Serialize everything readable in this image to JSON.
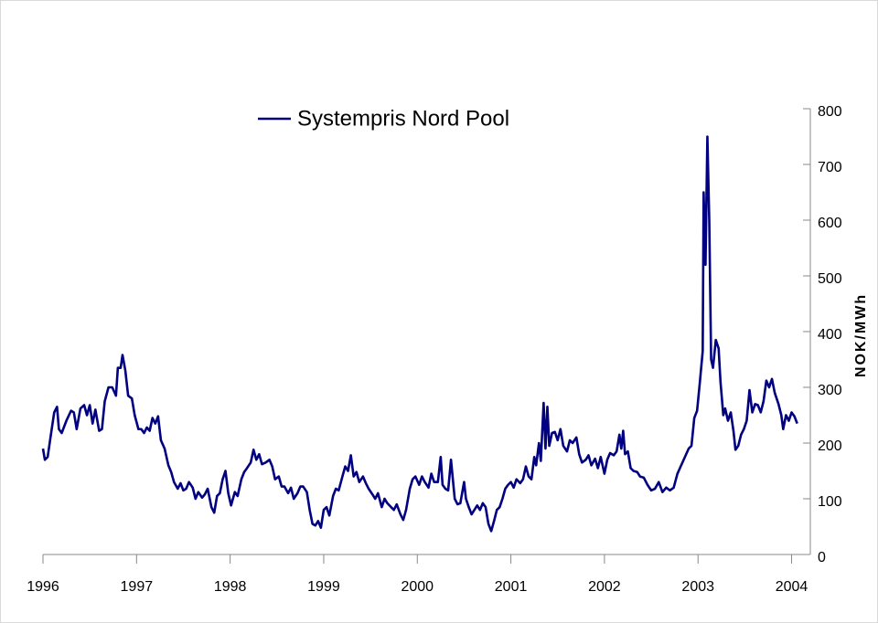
{
  "chart_data": {
    "type": "line",
    "y_label": "NOK/MWh",
    "legend": "top-left",
    "xlim": [
      1996,
      2004.2
    ],
    "xticks": [
      1996,
      1997,
      1998,
      1999,
      2000,
      2001,
      2002,
      2003,
      2004
    ],
    "ylim": [
      0,
      800
    ],
    "yticks": [
      0,
      100,
      200,
      300,
      400,
      500,
      600,
      700,
      800
    ],
    "y_axis_side": "right",
    "grid": false,
    "x": [
      1996.0,
      1996.02,
      1996.05,
      1996.08,
      1996.12,
      1996.15,
      1996.17,
      1996.2,
      1996.25,
      1996.3,
      1996.33,
      1996.36,
      1996.4,
      1996.44,
      1996.47,
      1996.5,
      1996.53,
      1996.56,
      1996.6,
      1996.63,
      1996.66,
      1996.7,
      1996.74,
      1996.78,
      1996.8,
      1996.83,
      1996.85,
      1996.88,
      1996.91,
      1996.95,
      1996.98,
      1997.02,
      1997.05,
      1997.08,
      1997.11,
      1997.14,
      1997.17,
      1997.2,
      1997.23,
      1997.26,
      1997.3,
      1997.34,
      1997.37,
      1997.4,
      1997.44,
      1997.47,
      1997.5,
      1997.53,
      1997.56,
      1997.6,
      1997.63,
      1997.66,
      1997.7,
      1997.73,
      1997.76,
      1997.8,
      1997.83,
      1997.86,
      1997.89,
      1997.92,
      1997.95,
      1997.98,
      1998.01,
      1998.05,
      1998.08,
      1998.12,
      1998.15,
      1998.18,
      1998.22,
      1998.25,
      1998.28,
      1998.31,
      1998.34,
      1998.38,
      1998.42,
      1998.45,
      1998.48,
      1998.52,
      1998.55,
      1998.58,
      1998.62,
      1998.65,
      1998.68,
      1998.72,
      1998.75,
      1998.78,
      1998.82,
      1998.85,
      1998.88,
      1998.91,
      1998.94,
      1998.97,
      1999.0,
      1999.03,
      1999.06,
      1999.1,
      1999.13,
      1999.16,
      1999.2,
      1999.23,
      1999.26,
      1999.29,
      1999.32,
      1999.35,
      1999.38,
      1999.42,
      1999.45,
      1999.48,
      1999.52,
      1999.55,
      1999.58,
      1999.62,
      1999.65,
      1999.68,
      1999.72,
      1999.75,
      1999.78,
      1999.82,
      1999.85,
      1999.88,
      1999.92,
      1999.95,
      1999.98,
      2000.02,
      2000.05,
      2000.08,
      2000.12,
      2000.15,
      2000.18,
      2000.22,
      2000.25,
      2000.27,
      2000.3,
      2000.33,
      2000.36,
      2000.4,
      2000.43,
      2000.46,
      2000.5,
      2000.52,
      2000.55,
      2000.58,
      2000.61,
      2000.64,
      2000.67,
      2000.7,
      2000.73,
      2000.76,
      2000.79,
      2000.82,
      2000.85,
      2000.88,
      2000.91,
      2000.94,
      2000.97,
      2001.0,
      2001.03,
      2001.06,
      2001.1,
      2001.13,
      2001.16,
      2001.19,
      2001.22,
      2001.25,
      2001.27,
      2001.3,
      2001.32,
      2001.35,
      2001.37,
      2001.39,
      2001.41,
      2001.44,
      2001.47,
      2001.5,
      2001.53,
      2001.56,
      2001.6,
      2001.63,
      2001.66,
      2001.7,
      2001.73,
      2001.76,
      2001.8,
      2001.83,
      2001.86,
      2001.9,
      2001.93,
      2001.96,
      2002.0,
      2002.03,
      2002.06,
      2002.1,
      2002.13,
      2002.16,
      2002.18,
      2002.2,
      2002.22,
      2002.25,
      2002.28,
      2002.31,
      2002.35,
      2002.38,
      2002.42,
      2002.46,
      2002.5,
      2002.54,
      2002.58,
      2002.62,
      2002.66,
      2002.7,
      2002.74,
      2002.78,
      2002.82,
      2002.86,
      2002.9,
      2002.93,
      2002.96,
      2002.99,
      2003.02,
      2003.05,
      2003.06,
      2003.08,
      2003.1,
      2003.12,
      2003.14,
      2003.16,
      2003.19,
      2003.22,
      2003.24,
      2003.27,
      2003.29,
      2003.32,
      2003.35,
      2003.38,
      2003.4,
      2003.43,
      2003.46,
      2003.49,
      2003.52,
      2003.55,
      2003.58,
      2003.61,
      2003.64,
      2003.67,
      2003.7,
      2003.73,
      2003.76,
      2003.79,
      2003.82,
      2003.86,
      2003.89,
      2003.91,
      2003.94,
      2003.97,
      2004.0,
      2004.03,
      2004.06
    ],
    "series": [
      {
        "name": "Systempris Nord Pool",
        "color": "#000080",
        "values": [
          190,
          170,
          175,
          210,
          255,
          265,
          225,
          218,
          240,
          258,
          255,
          225,
          262,
          268,
          250,
          268,
          235,
          260,
          222,
          225,
          275,
          300,
          300,
          285,
          335,
          335,
          358,
          330,
          285,
          280,
          250,
          225,
          225,
          218,
          228,
          222,
          245,
          235,
          248,
          205,
          190,
          160,
          148,
          130,
          118,
          128,
          115,
          118,
          130,
          120,
          100,
          112,
          102,
          108,
          118,
          85,
          75,
          105,
          110,
          135,
          150,
          110,
          88,
          112,
          105,
          135,
          148,
          155,
          165,
          188,
          170,
          180,
          162,
          165,
          170,
          158,
          135,
          140,
          122,
          122,
          110,
          120,
          100,
          110,
          122,
          122,
          112,
          80,
          55,
          52,
          60,
          48,
          80,
          85,
          70,
          105,
          118,
          115,
          140,
          158,
          150,
          178,
          140,
          148,
          130,
          140,
          128,
          118,
          108,
          100,
          110,
          85,
          100,
          92,
          85,
          80,
          90,
          72,
          62,
          80,
          118,
          135,
          140,
          125,
          140,
          130,
          120,
          145,
          130,
          130,
          175,
          125,
          118,
          115,
          170,
          100,
          90,
          92,
          130,
          100,
          85,
          72,
          80,
          88,
          80,
          92,
          85,
          55,
          42,
          60,
          80,
          85,
          100,
          118,
          125,
          130,
          120,
          135,
          128,
          135,
          158,
          140,
          135,
          175,
          160,
          200,
          168,
          272,
          190,
          265,
          195,
          218,
          220,
          205,
          225,
          195,
          185,
          205,
          200,
          210,
          180,
          165,
          170,
          178,
          160,
          172,
          155,
          175,
          145,
          170,
          182,
          178,
          185,
          215,
          190,
          222,
          180,
          185,
          155,
          150,
          148,
          140,
          138,
          125,
          115,
          118,
          130,
          112,
          120,
          115,
          120,
          145,
          160,
          175,
          190,
          195,
          245,
          258,
          310,
          365,
          650,
          520,
          750,
          600,
          350,
          335,
          385,
          370,
          310,
          250,
          262,
          240,
          255,
          220,
          188,
          195,
          215,
          225,
          240,
          295,
          255,
          270,
          268,
          255,
          275,
          312,
          300,
          315,
          290,
          270,
          250,
          225,
          250,
          240,
          255,
          248,
          235
        ]
      }
    ]
  }
}
